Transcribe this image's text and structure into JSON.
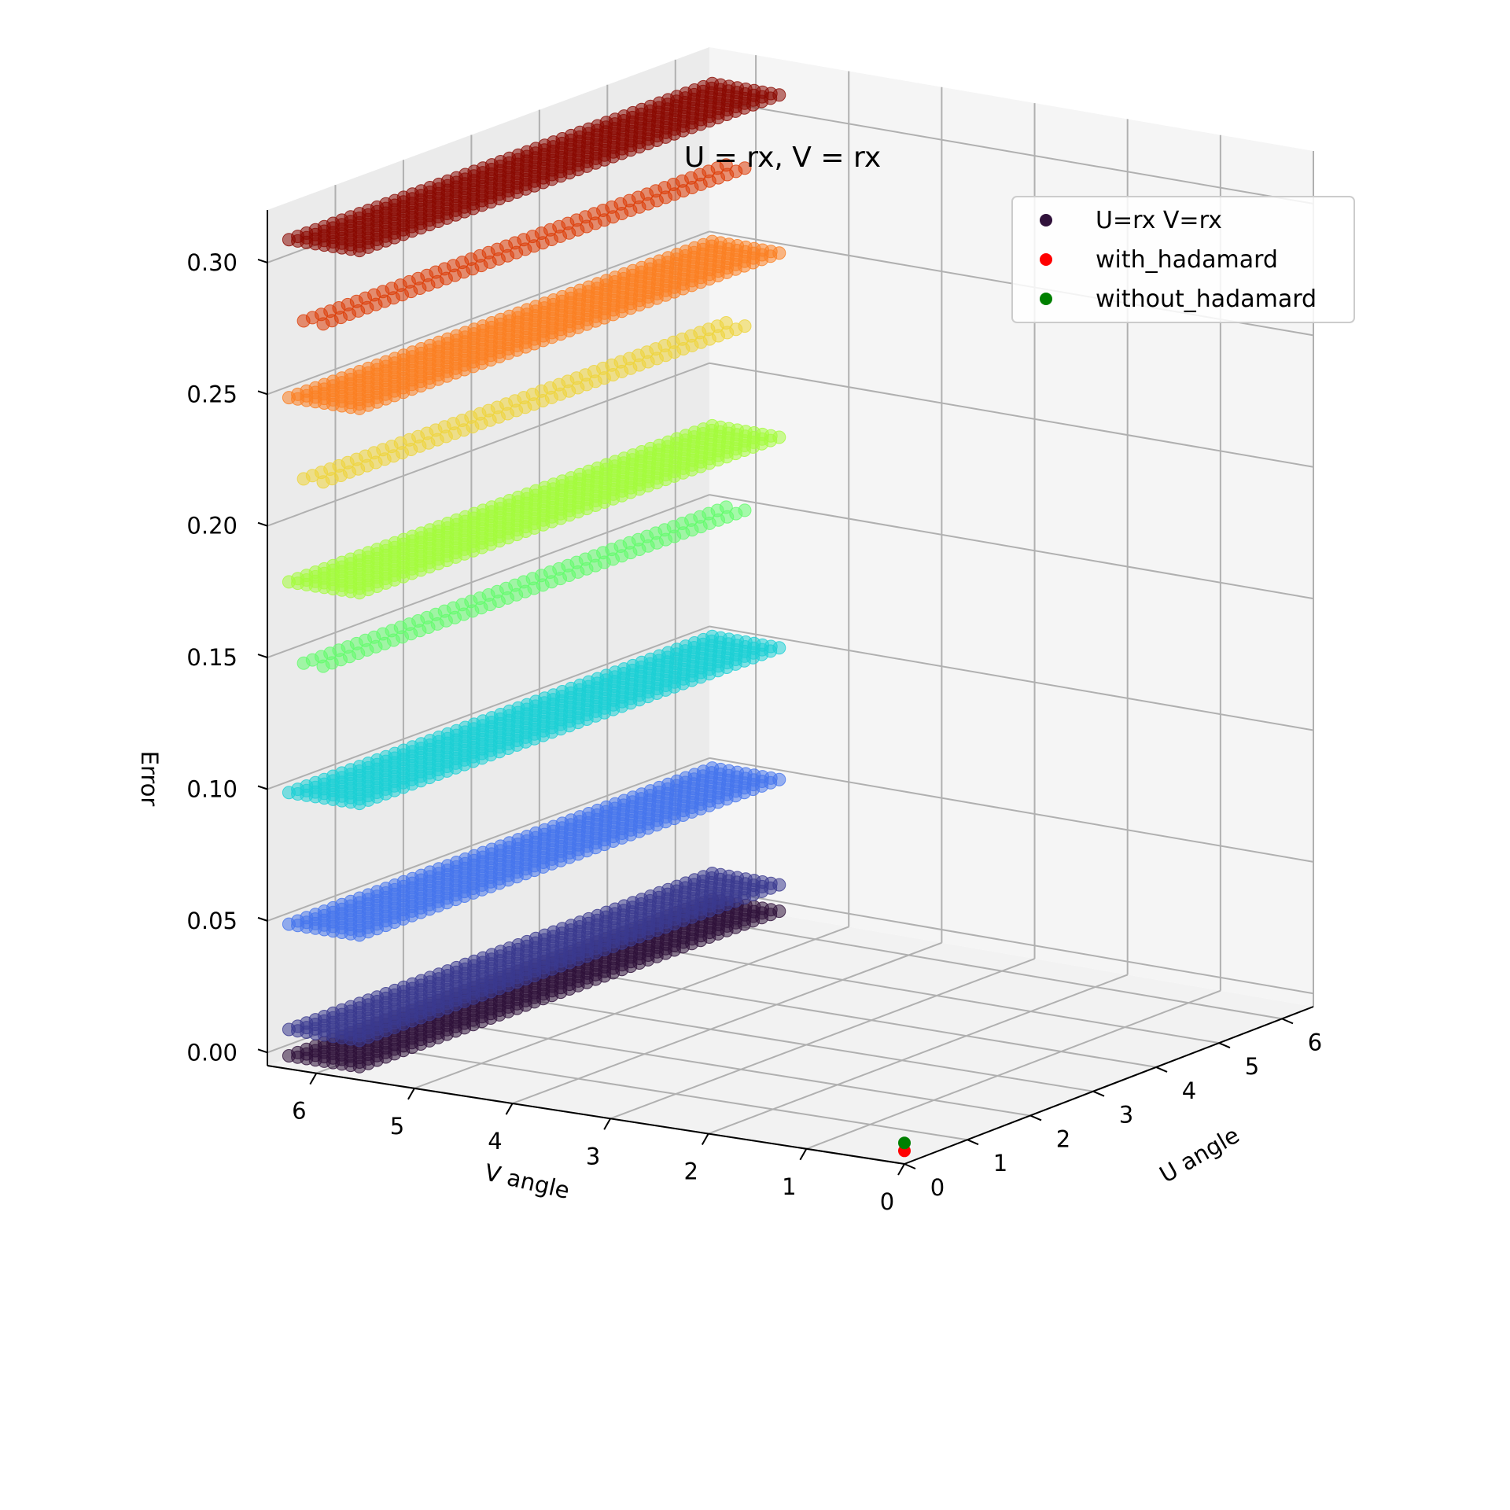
{
  "chart_data": {
    "type": "scatter",
    "projection": "3d",
    "title": "U = rx, V = rx",
    "xlabel": "U angle",
    "ylabel": "V angle",
    "zlabel": "Error",
    "xlim": [
      0,
      6.5
    ],
    "ylim": [
      0,
      6.5
    ],
    "zlim": [
      -0.005,
      0.32
    ],
    "x_ticks": [
      "0",
      "1",
      "2",
      "3",
      "4",
      "5",
      "6"
    ],
    "y_ticks": [
      "0",
      "1",
      "2",
      "3",
      "4",
      "5",
      "6"
    ],
    "z_ticks": [
      "0.00",
      "0.05",
      "0.10",
      "0.15",
      "0.20",
      "0.25",
      "0.30"
    ],
    "grid": true,
    "colormap": "turbo",
    "legend_position": "top-right",
    "series": [
      {
        "name": "U=rx V=rx",
        "legend_color": "#30123b",
        "description_levels": [
          {
            "error": 0.0,
            "u_range": [
              0,
              6.28
            ],
            "v_range": [
              0,
              6.28
            ],
            "band": "dense",
            "color": "#30123b"
          },
          {
            "error": 0.01,
            "u_range": [
              0,
              6.28
            ],
            "v_range": [
              0,
              6.28
            ],
            "band": "dense",
            "color": "#3b3a8f"
          },
          {
            "error": 0.05,
            "u_range": [
              0,
              6.28
            ],
            "v_range": [
              0,
              6.28
            ],
            "band": "dense",
            "color": "#4675ed"
          },
          {
            "error": 0.1,
            "u_range": [
              0,
              6.28
            ],
            "v_range": [
              0,
              6.28
            ],
            "band": "dense",
            "color": "#1bd0d5"
          },
          {
            "error": 0.15,
            "u_range": [
              0,
              6.28
            ],
            "v_range": [
              0,
              6.28
            ],
            "band": "sparse",
            "color": "#62fc6b"
          },
          {
            "error": 0.18,
            "u_range": [
              0,
              6.28
            ],
            "v_range": [
              0,
              6.28
            ],
            "band": "dense",
            "color": "#a4fc3c"
          },
          {
            "error": 0.22,
            "u_range": [
              0,
              6.28
            ],
            "v_range": [
              0,
              6.28
            ],
            "band": "sparse",
            "color": "#eed43a"
          },
          {
            "error": 0.25,
            "u_range": [
              0,
              6.28
            ],
            "v_range": [
              0,
              6.28
            ],
            "band": "dense",
            "color": "#fb8022"
          },
          {
            "error": 0.28,
            "u_range": [
              0,
              6.28
            ],
            "v_range": [
              0,
              6.28
            ],
            "band": "sparse",
            "color": "#dd3d08"
          },
          {
            "error": 0.31,
            "u_range": [
              0,
              6.28
            ],
            "v_range": [
              0,
              6.28
            ],
            "band": "dense",
            "color": "#8b0a01"
          }
        ]
      },
      {
        "name": "with_hadamard",
        "legend_color": "#ff0000",
        "points": [
          {
            "u": 0.0,
            "v": 0.0,
            "error": 0.0
          }
        ]
      },
      {
        "name": "without_hadamard",
        "legend_color": "#008000",
        "points": [
          {
            "u": 0.0,
            "v": 0.0,
            "error": 0.003
          }
        ]
      }
    ]
  }
}
